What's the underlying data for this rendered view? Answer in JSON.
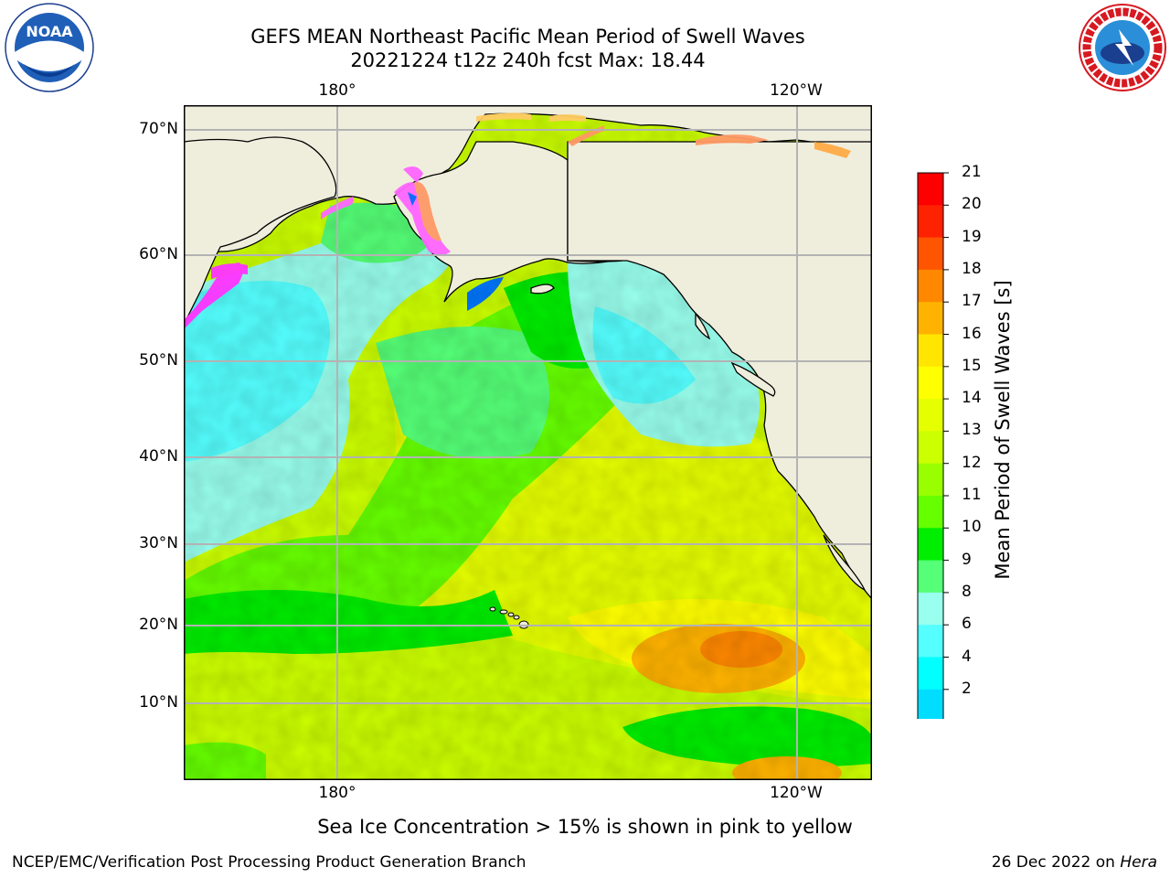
{
  "header": {
    "title_line1": "GEFS MEAN Northeast Pacific Mean Period of Swell Waves",
    "title_line2": "20221224 t12z 240h fcst   Max: 18.44"
  },
  "logos": {
    "left": "NOAA",
    "right": "NATIONAL WEATHER SERVICE"
  },
  "map": {
    "lon_labels_top": [
      "180°",
      "120°W"
    ],
    "lon_labels_bottom": [
      "180°",
      "120°W"
    ],
    "lat_labels": [
      "70°N",
      "60°N",
      "50°N",
      "40°N",
      "30°N",
      "20°N",
      "10°N"
    ],
    "land_color": "#efeedd",
    "grid_color": "#b3b3b3"
  },
  "colorbar": {
    "title": "Mean Period of Swell Waves [s]",
    "ticks": [
      "21",
      "20",
      "19",
      "18",
      "17",
      "16",
      "15",
      "14",
      "13",
      "12",
      "11",
      "10",
      "9",
      "8",
      "6",
      "4",
      "2"
    ],
    "colors_top_to_bottom": [
      "#ff0000",
      "#ff2200",
      "#ff5500",
      "#ff8800",
      "#ffb300",
      "#ffe500",
      "#ffff00",
      "#e6ff00",
      "#ccff00",
      "#99ff00",
      "#66ff00",
      "#00ee00",
      "#55ff77",
      "#99ffee",
      "#55ffff",
      "#00ffff",
      "#00ddff",
      "#0077ff"
    ],
    "extend_color": "#0000ff"
  },
  "caption": "Sea Ice Concentration > 15% is shown in pink to yellow",
  "footer": {
    "left": "NCEP/EMC/Verification Post Processing Product Generation Branch",
    "right_date": "26 Dec 2022 on ",
    "right_host": "Hera"
  }
}
